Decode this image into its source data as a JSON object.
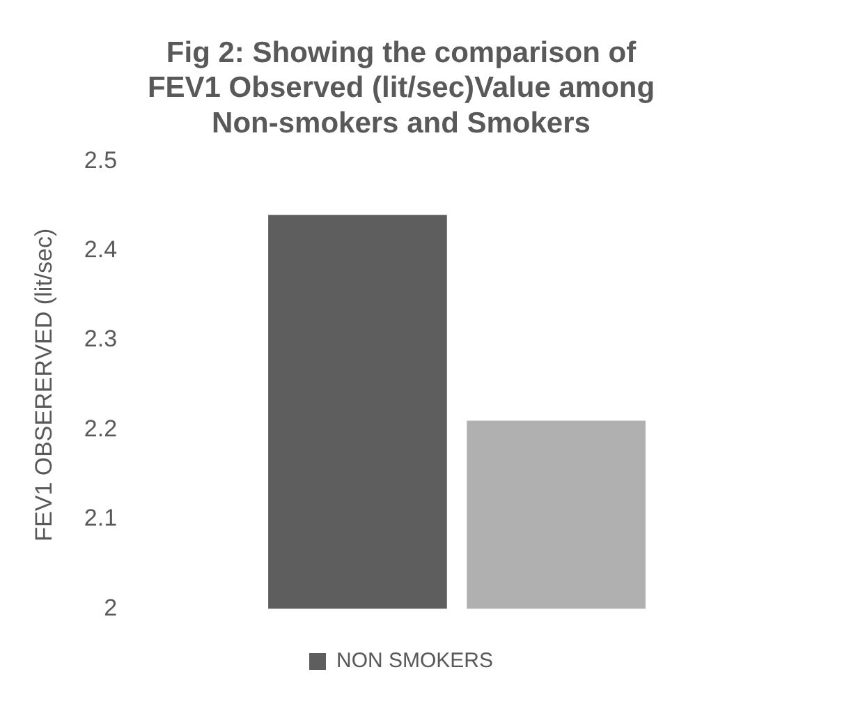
{
  "chart_data": {
    "type": "bar",
    "title": [
      "Fig 2: Showing the comparison of",
      "FEV1 Observed (lit/sec)Value among",
      "Non-smokers and Smokers"
    ],
    "ylabel": "FEV1 OBSERERVED (lit/sec)",
    "categories": [
      null
    ],
    "series": [
      {
        "name": "NON SMOKERS",
        "color": "#5e5e5e",
        "values": [
          2.44
        ]
      },
      {
        "color": "#b0b0b0",
        "values": [
          2.21
        ]
      }
    ],
    "ylim": [
      2,
      2.5
    ],
    "yticks": [
      2,
      2.1,
      2.2,
      2.3,
      2.4,
      2.5
    ],
    "grid": false,
    "legend": "bottom"
  }
}
